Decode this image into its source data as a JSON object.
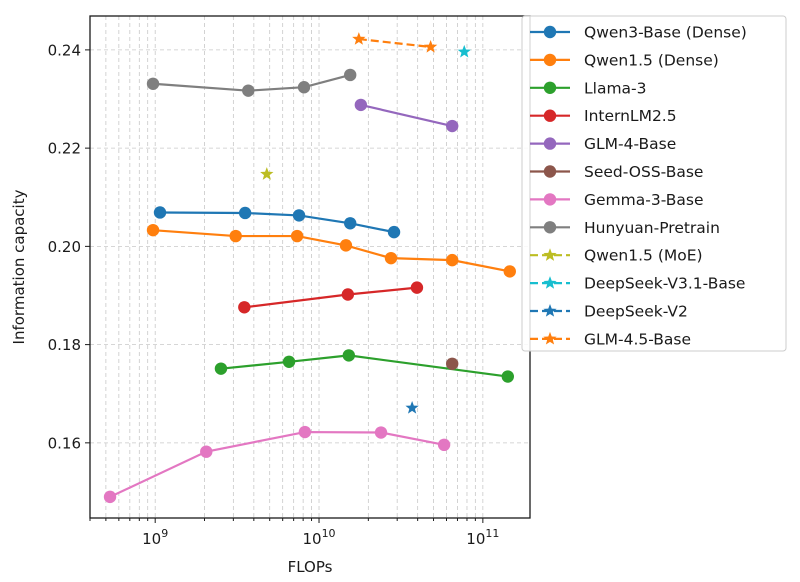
{
  "chart_data": {
    "type": "line",
    "title": "",
    "xlabel": "FLOPs",
    "ylabel": "Information capacity",
    "xscale": "log",
    "xlim": [
      400000000.0,
      194000000000.0
    ],
    "ylim": [
      0.1447,
      0.2469
    ],
    "xticks": [
      {
        "value": 1000000000.0,
        "base": "10",
        "exp": "9"
      },
      {
        "value": 10000000000.0,
        "base": "10",
        "exp": "10"
      },
      {
        "value": 100000000000.0,
        "base": "10",
        "exp": "11"
      }
    ],
    "yticks": [
      {
        "value": 0.16,
        "label": "0.16"
      },
      {
        "value": 0.18,
        "label": "0.18"
      },
      {
        "value": 0.2,
        "label": "0.20"
      },
      {
        "value": 0.22,
        "label": "0.22"
      },
      {
        "value": 0.24,
        "label": "0.24"
      }
    ],
    "grid": true,
    "legend_position": "outside-top-right",
    "series": [
      {
        "name": "Qwen3-Base (Dense)",
        "color": "#1f77b4",
        "marker": "circle",
        "linestyle": "solid",
        "x": [
          1070000000.0,
          3540000000.0,
          7550000000.0,
          15500000000.0,
          28700000000.0
        ],
        "y": [
          0.2069,
          0.2068,
          0.2063,
          0.2047,
          0.2029
        ]
      },
      {
        "name": "Qwen1.5 (Dense)",
        "color": "#ff7f0e",
        "marker": "circle",
        "linestyle": "solid",
        "x": [
          970000000.0,
          3100000000.0,
          7350000000.0,
          14600000000.0,
          27500000000.0,
          65000000000.0,
          146000000000.0
        ],
        "y": [
          0.2033,
          0.2021,
          0.2021,
          0.2002,
          0.1976,
          0.1972,
          0.1949
        ]
      },
      {
        "name": "Llama-3",
        "color": "#2ca02c",
        "marker": "circle",
        "linestyle": "solid",
        "x": [
          2520000000.0,
          6560000000.0,
          15200000000.0,
          142000000000.0
        ],
        "y": [
          0.1751,
          0.1765,
          0.1778,
          0.1735
        ]
      },
      {
        "name": "InternLM2.5",
        "color": "#d62728",
        "marker": "circle",
        "linestyle": "solid",
        "x": [
          3500000000.0,
          15000000000.0,
          39600000000.0
        ],
        "y": [
          0.1876,
          0.1902,
          0.1916
        ]
      },
      {
        "name": "GLM-4-Base",
        "color": "#9467bd",
        "marker": "circle",
        "linestyle": "solid",
        "x": [
          18000000000.0,
          65000000000.0
        ],
        "y": [
          0.2288,
          0.2245
        ]
      },
      {
        "name": "Seed-OSS-Base",
        "color": "#8c564b",
        "marker": "circle",
        "linestyle": "solid",
        "x": [
          65000000000.0
        ],
        "y": [
          0.1761
        ]
      },
      {
        "name": "Gemma-3-Base",
        "color": "#e377c2",
        "marker": "circle",
        "linestyle": "solid",
        "x": [
          530000000.0,
          2050000000.0,
          8200000000.0,
          23900000000.0,
          58000000000.0
        ],
        "y": [
          0.149,
          0.1582,
          0.1622,
          0.1621,
          0.1596
        ]
      },
      {
        "name": "Hunyuan-Pretrain",
        "color": "#7f7f7f",
        "marker": "circle",
        "linestyle": "solid",
        "x": [
          970000000.0,
          3700000000.0,
          8100000000.0,
          15500000000.0
        ],
        "y": [
          0.2331,
          0.2317,
          0.2324,
          0.2349
        ]
      },
      {
        "name": "Qwen1.5 (MoE)",
        "color": "#bcbd22",
        "marker": "star",
        "linestyle": "dashed",
        "x": [
          4800000000.0
        ],
        "y": [
          0.2147
        ]
      },
      {
        "name": "DeepSeek-V3.1-Base",
        "color": "#17becf",
        "marker": "star",
        "linestyle": "dashed",
        "x": [
          77000000000.0
        ],
        "y": [
          0.2396
        ]
      },
      {
        "name": "DeepSeek-V2",
        "color": "#1f77b4",
        "marker": "star",
        "linestyle": "dashed",
        "x": [
          37000000000.0
        ],
        "y": [
          0.1671
        ]
      },
      {
        "name": "GLM-4.5-Base",
        "color": "#ff7f0e",
        "marker": "star",
        "linestyle": "dashed",
        "x": [
          17500000000.0,
          48000000000.0
        ],
        "y": [
          0.2422,
          0.2406
        ]
      }
    ]
  }
}
